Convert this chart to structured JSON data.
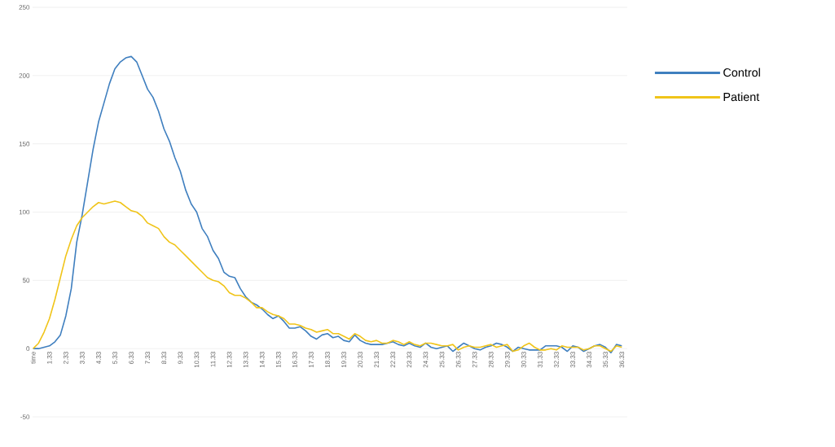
{
  "chart_data": {
    "type": "line",
    "categories": [
      "time",
      null,
      null,
      "1.33",
      null,
      null,
      "2.33",
      null,
      null,
      "3.33",
      null,
      null,
      "4.33",
      null,
      null,
      "5.33",
      null,
      null,
      "6.33",
      null,
      null,
      "7.33",
      null,
      null,
      "8.33",
      null,
      null,
      "9.33",
      null,
      null,
      "10.33",
      null,
      null,
      "11.33",
      null,
      null,
      "12.33",
      null,
      null,
      "13.33",
      null,
      null,
      "14.33",
      null,
      null,
      "15.33",
      null,
      null,
      "16.33",
      null,
      null,
      "17.33",
      null,
      null,
      "18.33",
      null,
      null,
      "19.33",
      null,
      null,
      "20.33",
      null,
      null,
      "21.33",
      null,
      null,
      "22.33",
      null,
      null,
      "23.33",
      null,
      null,
      "24.33",
      null,
      null,
      "25.33",
      null,
      null,
      "26.33",
      null,
      null,
      "27.33",
      null,
      null,
      "28.33",
      null,
      null,
      "29.33",
      null,
      null,
      "30.33",
      null,
      null,
      "31.33",
      null,
      null,
      "32.33",
      null,
      null,
      "33.33",
      null,
      null,
      "34.33",
      null,
      null,
      "35.33",
      null,
      null,
      "36.33"
    ],
    "series": [
      {
        "name": "Control",
        "color": "#3f7fbf",
        "values": [
          0,
          0,
          1,
          2,
          5,
          10,
          24,
          44,
          78,
          98,
          122,
          146,
          166,
          180,
          194,
          205,
          210,
          213,
          214,
          210,
          200,
          190,
          184,
          174,
          161,
          152,
          140,
          130,
          116,
          106,
          100,
          88,
          82,
          72,
          66,
          56,
          53,
          52,
          44,
          38,
          34,
          32,
          29,
          25,
          22,
          24,
          20,
          15,
          15,
          16,
          13,
          9,
          7,
          10,
          11,
          8,
          9,
          6,
          5,
          10,
          6,
          4,
          3,
          3,
          3,
          4,
          5,
          3,
          2,
          4,
          2,
          1,
          4,
          1,
          0,
          1,
          2,
          -2,
          1,
          4,
          2,
          0,
          -1,
          1,
          2,
          4,
          3,
          1,
          -2,
          1,
          0,
          -1,
          -1,
          -1,
          2,
          2,
          2,
          1,
          -2,
          2,
          1,
          -2,
          0,
          2,
          3,
          1,
          -3,
          3,
          2
        ]
      },
      {
        "name": "Patient",
        "color": "#f0c419",
        "values": [
          0,
          4,
          12,
          22,
          36,
          52,
          68,
          80,
          90,
          96,
          100,
          104,
          107,
          106,
          107,
          108,
          107,
          104,
          101,
          100,
          97,
          92,
          90,
          88,
          82,
          78,
          76,
          72,
          68,
          64,
          60,
          56,
          52,
          50,
          49,
          46,
          41,
          39,
          39,
          37,
          34,
          30,
          30,
          27,
          25,
          24,
          22,
          18,
          18,
          17,
          15,
          14,
          12,
          13,
          14,
          11,
          11,
          9,
          7,
          11,
          9,
          6,
          5,
          6,
          4,
          4,
          6,
          5,
          3,
          5,
          3,
          2,
          4,
          4,
          3,
          2,
          2,
          3,
          -1,
          1,
          2,
          1,
          1,
          2,
          3,
          1,
          2,
          3,
          -2,
          -1,
          2,
          4,
          1,
          -1,
          -1,
          0,
          -1,
          2,
          1,
          1,
          1,
          -1,
          0,
          2,
          2,
          0,
          -2,
          2,
          1
        ]
      }
    ],
    "ylim": [
      -50,
      250
    ],
    "yticks": [
      -50,
      0,
      50,
      100,
      150,
      200,
      250
    ],
    "grid": "y",
    "legend": "right",
    "marker": "none",
    "line_style": "solid"
  }
}
